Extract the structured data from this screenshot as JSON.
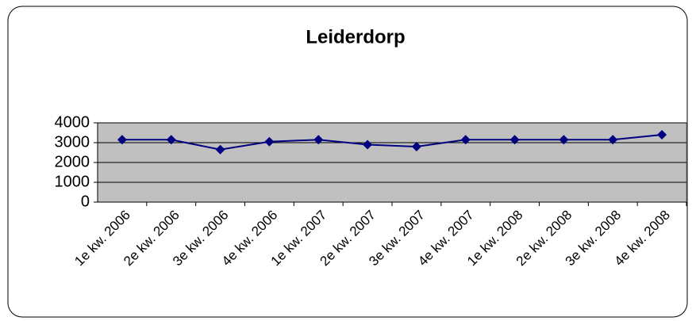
{
  "chart_data": {
    "type": "line",
    "title": "Leiderdorp",
    "categories": [
      "1e kw. 2006",
      "2e kw. 2006",
      "3e kw. 2006",
      "4e kw. 2006",
      "1e kw. 2007",
      "2e kw. 2007",
      "3e kw. 2007",
      "4e kw. 2007",
      "1e kw. 2008",
      "2e kw. 2008",
      "3e kw. 2008",
      "4e kw. 2008"
    ],
    "values": [
      3150,
      3150,
      2650,
      3050,
      3150,
      2900,
      2800,
      3150,
      3150,
      3150,
      3150,
      3400
    ],
    "color": "#000080",
    "ylim": [
      0,
      4000
    ],
    "yticks": [
      0,
      1000,
      2000,
      3000,
      4000
    ],
    "grid": true
  }
}
